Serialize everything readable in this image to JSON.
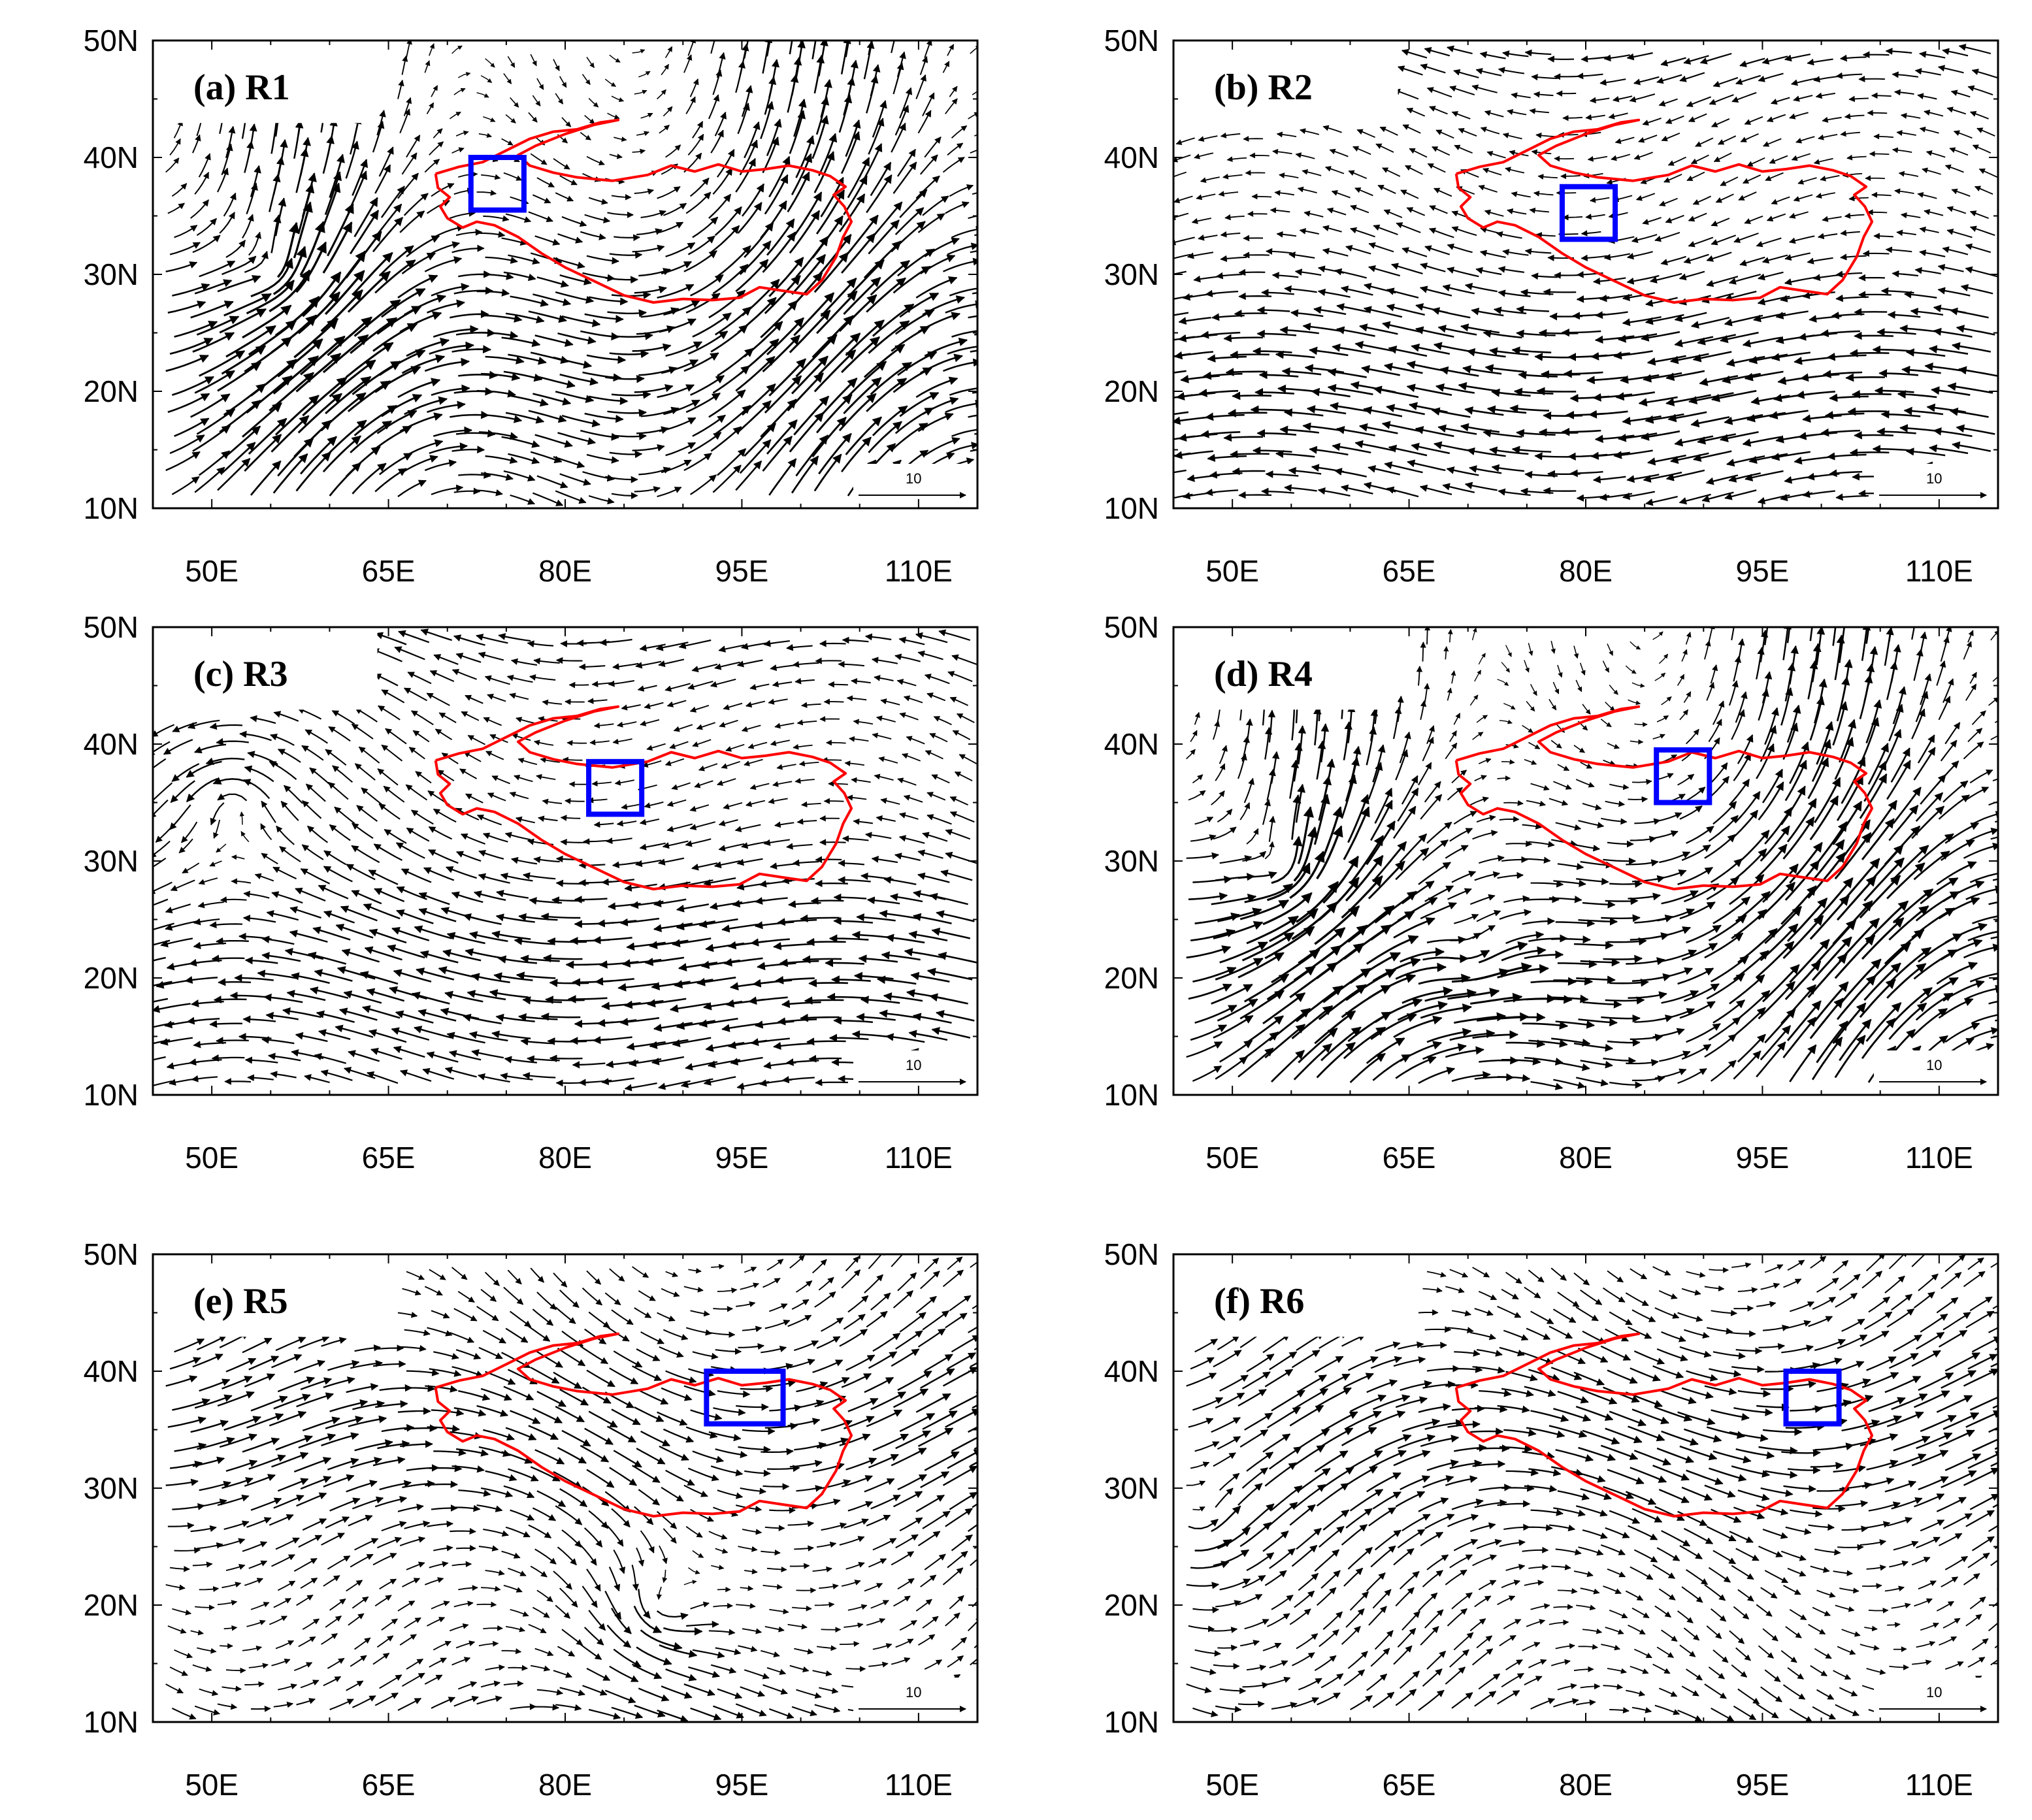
{
  "figure": {
    "x_tick_labels": [
      "50E",
      "65E",
      "80E",
      "95E",
      "110E"
    ],
    "y_tick_labels": [
      "10N",
      "20N",
      "30N",
      "40N",
      "50N"
    ],
    "reference_vector_label": "10",
    "colors": {
      "streamline": "#000000",
      "plateau_outline": "#ff0000",
      "region_box": "#0000ff",
      "coastline": "#999999"
    }
  },
  "chart_data": [
    {
      "type": "vector-field",
      "title": "(a) R1",
      "xlim": [
        45,
        115
      ],
      "ylim": [
        10,
        50
      ],
      "region_box": {
        "lon": [
          72,
          76.5
        ],
        "lat": [
          35.5,
          40
        ]
      },
      "vortices": [
        {
          "lon": 55,
          "lat": 30,
          "strength": 1.0
        }
      ],
      "background_flow": "southwesterly",
      "grid": false
    },
    {
      "type": "vector-field",
      "title": "(b) R2",
      "xlim": [
        45,
        115
      ],
      "ylim": [
        10,
        50
      ],
      "region_box": {
        "lon": [
          78,
          82.5
        ],
        "lat": [
          33,
          37.5
        ]
      },
      "vortices": [],
      "background_flow": "easterly",
      "grid": false
    },
    {
      "type": "vector-field",
      "title": "(c) R3",
      "xlim": [
        45,
        115
      ],
      "ylim": [
        10,
        50
      ],
      "region_box": {
        "lon": [
          82,
          86.5
        ],
        "lat": [
          34,
          38.5
        ]
      },
      "vortices": [
        {
          "lon": 52,
          "lat": 35,
          "strength": 1.0
        }
      ],
      "background_flow": "easterly",
      "grid": false
    },
    {
      "type": "vector-field",
      "title": "(d) R4",
      "xlim": [
        45,
        115
      ],
      "ylim": [
        10,
        50
      ],
      "region_box": {
        "lon": [
          86,
          90.5
        ],
        "lat": [
          35,
          39.5
        ]
      },
      "vortices": [
        {
          "lon": 54,
          "lat": 29,
          "strength": 1.2
        },
        {
          "lon": 70,
          "lat": 22,
          "strength": 0.8
        }
      ],
      "background_flow": "southwesterly",
      "grid": false
    },
    {
      "type": "vector-field",
      "title": "(e) R5",
      "xlim": [
        45,
        115
      ],
      "ylim": [
        10,
        50
      ],
      "region_box": {
        "lon": [
          92,
          98.5
        ],
        "lat": [
          35.5,
          40
        ]
      },
      "vortices": [
        {
          "lon": 88,
          "lat": 20,
          "strength": 1.0
        }
      ],
      "background_flow": "westerly",
      "grid": false
    },
    {
      "type": "vector-field",
      "title": "(f) R6",
      "xlim": [
        45,
        115
      ],
      "ylim": [
        10,
        50
      ],
      "region_box": {
        "lon": [
          97,
          101.5
        ],
        "lat": [
          35.5,
          40
        ]
      },
      "vortices": [
        {
          "lon": 47,
          "lat": 27,
          "strength": 0.8
        }
      ],
      "background_flow": "westerly",
      "grid": false
    }
  ]
}
